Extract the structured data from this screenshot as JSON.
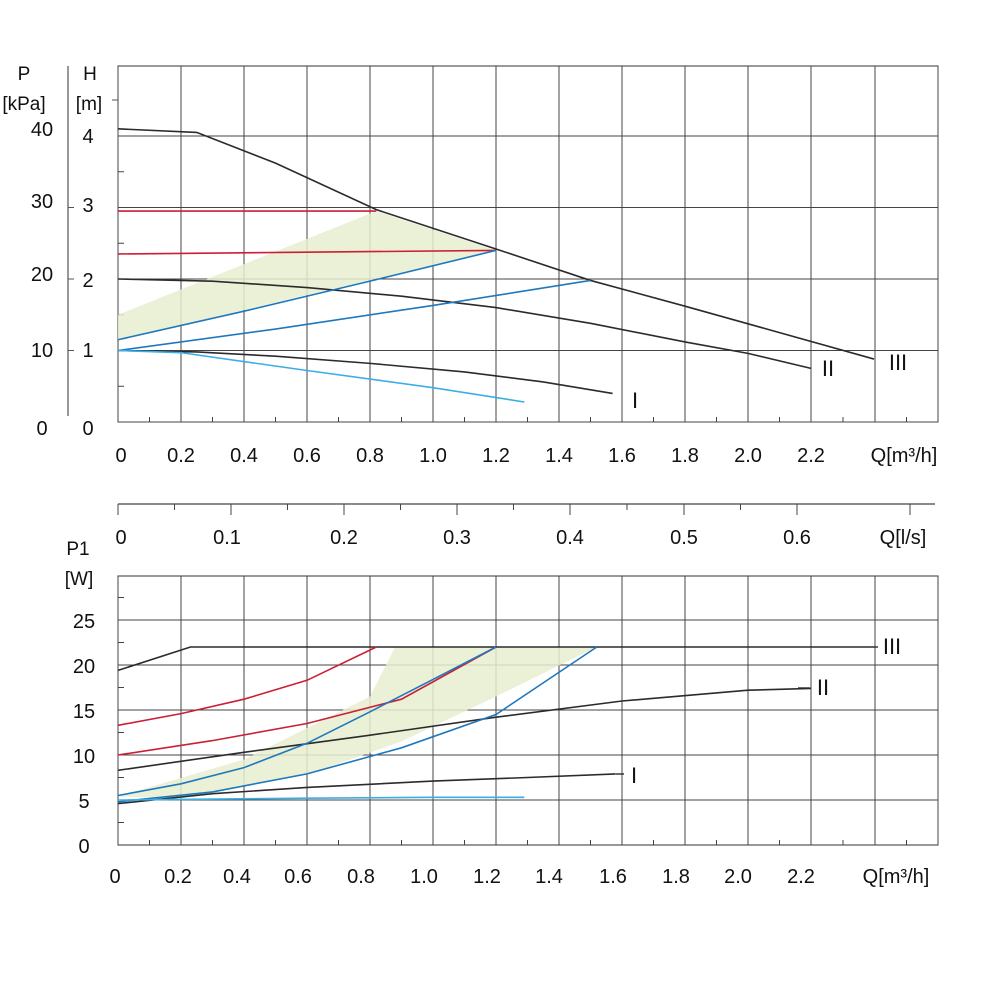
{
  "chart_data": [
    {
      "type": "line",
      "y_label_left": [
        "P",
        "[kPa]"
      ],
      "y_label_right": [
        "H",
        "[m]"
      ],
      "x_label": "Q[m³/h]",
      "x_ticks": [
        "0",
        "0.2",
        "0.4",
        "0.6",
        "0.8",
        "1.0",
        "1.2",
        "1.4",
        "1.6",
        "1.8",
        "2.0",
        "2.2"
      ],
      "y_ticks_kpa": [
        "0",
        "10",
        "20",
        "30",
        "40"
      ],
      "y_ticks_m": [
        "0",
        "1",
        "2",
        "3",
        "4"
      ],
      "xlim": [
        0,
        2.6
      ],
      "ylim_m": [
        0,
        4.3
      ],
      "grid": true,
      "region": [
        [
          0,
          1.05
        ],
        [
          0,
          1.5
        ],
        [
          0.82,
          2.95
        ],
        [
          1.2,
          2.4
        ],
        [
          1.5,
          1.98
        ],
        [
          1.2,
          2.4
        ],
        [
          0,
          1.15
        ]
      ],
      "series": [
        {
          "label": "III",
          "color": "#2b2b2b",
          "points": [
            [
              0,
              4.1
            ],
            [
              0.25,
              4.05
            ],
            [
              0.5,
              3.62
            ],
            [
              0.82,
              2.97
            ],
            [
              1.2,
              2.42
            ],
            [
              1.5,
              1.98
            ],
            [
              1.8,
              1.62
            ],
            [
              2.1,
              1.25
            ],
            [
              2.4,
              0.88
            ]
          ]
        },
        {
          "label": "II",
          "color": "#2b2b2b",
          "points": [
            [
              0,
              2.0
            ],
            [
              0.3,
              1.97
            ],
            [
              0.6,
              1.88
            ],
            [
              0.9,
              1.76
            ],
            [
              1.2,
              1.6
            ],
            [
              1.5,
              1.38
            ],
            [
              1.8,
              1.12
            ],
            [
              2.0,
              0.96
            ],
            [
              2.2,
              0.75
            ]
          ]
        },
        {
          "label": "I",
          "color": "#2b2b2b",
          "points": [
            [
              0,
              1.0
            ],
            [
              0.25,
              0.98
            ],
            [
              0.5,
              0.92
            ],
            [
              0.8,
              0.82
            ],
            [
              1.1,
              0.7
            ],
            [
              1.35,
              0.56
            ],
            [
              1.57,
              0.4
            ]
          ]
        },
        {
          "label": "",
          "color": "#cc1f36",
          "points": [
            [
              0,
              2.95
            ],
            [
              0.82,
              2.95
            ]
          ]
        },
        {
          "label": "",
          "color": "#cc1f36",
          "points": [
            [
              0,
              2.35
            ],
            [
              1.2,
              2.4
            ]
          ]
        },
        {
          "label": "",
          "color": "#1f78bd",
          "points": [
            [
              0,
              1.15
            ],
            [
              0.4,
              1.55
            ],
            [
              0.8,
              1.97
            ],
            [
              1.2,
              2.4
            ]
          ]
        },
        {
          "label": "",
          "color": "#1f78bd",
          "points": [
            [
              0,
              1.0
            ],
            [
              0.5,
              1.3
            ],
            [
              1.0,
              1.63
            ],
            [
              1.5,
              1.98
            ]
          ]
        },
        {
          "label": "",
          "color": "#3aaee6",
          "points": [
            [
              0,
              1.0
            ],
            [
              0.2,
              0.97
            ],
            [
              0.6,
              0.72
            ],
            [
              1.0,
              0.48
            ],
            [
              1.29,
              0.28
            ]
          ]
        }
      ]
    },
    {
      "type": "line",
      "y_label": [
        "P1",
        "[W]"
      ],
      "x_label": "Q[m³/h]",
      "x_ticks": [
        "0",
        "0.2",
        "0.4",
        "0.6",
        "0.8",
        "1.0",
        "1.2",
        "1.4",
        "1.6",
        "1.8",
        "2.0",
        "2.2"
      ],
      "y_ticks": [
        "0",
        "5",
        "10",
        "15",
        "20",
        "25"
      ],
      "secondary_x_label": "Q[l/s]",
      "secondary_x_ticks": [
        "0",
        "0.1",
        "0.2",
        "0.3",
        "0.4",
        "0.5",
        "0.6"
      ],
      "xlim": [
        0,
        2.6
      ],
      "ylim": [
        0,
        30
      ],
      "grid": true,
      "region": [
        [
          0,
          5.4
        ],
        [
          0.4,
          9.5
        ],
        [
          0.8,
          16.5
        ],
        [
          0.88,
          22
        ],
        [
          1.52,
          22
        ],
        [
          1.2,
          16.5
        ],
        [
          0.9,
          11.5
        ],
        [
          0.6,
          7.8
        ],
        [
          0.2,
          5.2
        ]
      ],
      "series": [
        {
          "label": "III",
          "color": "#2b2b2b",
          "points": [
            [
              0,
              19.4
            ],
            [
              0.23,
              22
            ],
            [
              1.0,
              22
            ],
            [
              2.0,
              22
            ],
            [
              2.4,
              22
            ]
          ]
        },
        {
          "label": "II",
          "color": "#2b2b2b",
          "points": [
            [
              0,
              8.3
            ],
            [
              0.4,
              10.3
            ],
            [
              0.8,
              12.2
            ],
            [
              1.2,
              14.2
            ],
            [
              1.6,
              16
            ],
            [
              2.0,
              17.2
            ],
            [
              2.2,
              17.4
            ]
          ]
        },
        {
          "label": "I",
          "color": "#2b2b2b",
          "points": [
            [
              0,
              4.6
            ],
            [
              0.3,
              5.7
            ],
            [
              0.6,
              6.4
            ],
            [
              1.0,
              7.1
            ],
            [
              1.3,
              7.5
            ],
            [
              1.58,
              7.9
            ]
          ]
        },
        {
          "label": "",
          "color": "#cc1f36",
          "points": [
            [
              0,
              13.3
            ],
            [
              0.2,
              14.6
            ],
            [
              0.4,
              16.2
            ],
            [
              0.6,
              18.3
            ],
            [
              0.82,
              22
            ]
          ]
        },
        {
          "label": "",
          "color": "#cc1f36",
          "points": [
            [
              0,
              10.0
            ],
            [
              0.3,
              11.6
            ],
            [
              0.6,
              13.5
            ],
            [
              0.9,
              16.2
            ],
            [
              1.2,
              22
            ]
          ]
        },
        {
          "label": "",
          "color": "#1f78bd",
          "points": [
            [
              0,
              5.5
            ],
            [
              0.2,
              6.8
            ],
            [
              0.4,
              8.6
            ],
            [
              0.6,
              11.3
            ],
            [
              0.8,
              14.8
            ],
            [
              1.0,
              18.4
            ],
            [
              1.2,
              22
            ]
          ]
        },
        {
          "label": "",
          "color": "#1f78bd",
          "points": [
            [
              0,
              4.8
            ],
            [
              0.3,
              5.9
            ],
            [
              0.6,
              7.9
            ],
            [
              0.9,
              10.8
            ],
            [
              1.2,
              14.5
            ],
            [
              1.52,
              22
            ]
          ]
        },
        {
          "label": "",
          "color": "#3aaee6",
          "points": [
            [
              0,
              5.0
            ],
            [
              0.6,
              5.2
            ],
            [
              1.0,
              5.3
            ],
            [
              1.29,
              5.3
            ]
          ]
        }
      ]
    }
  ]
}
